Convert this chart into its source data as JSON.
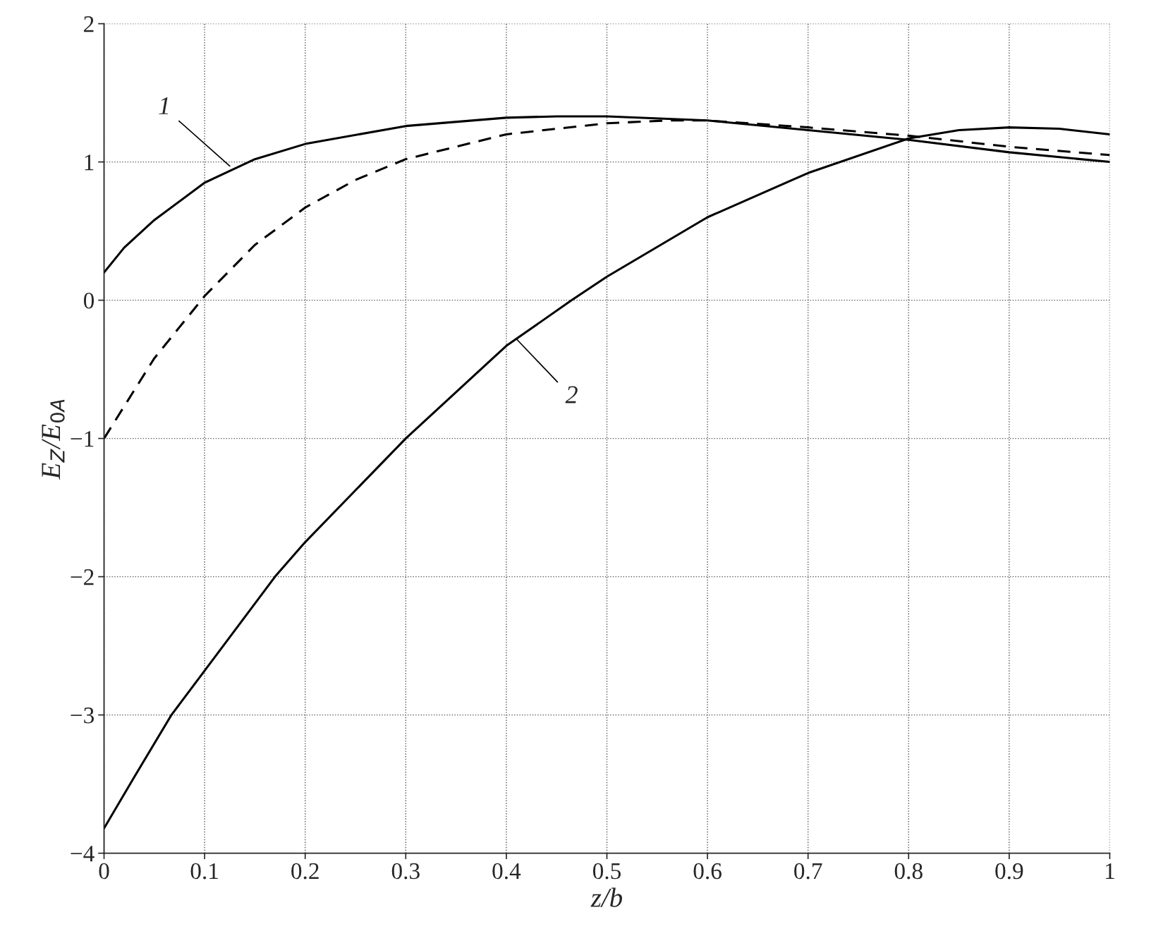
{
  "chart_data": {
    "type": "line",
    "xlabel": "z/b",
    "ylabel": "E$_{Z}$/E$_{0A}$",
    "xlim": [
      0,
      1
    ],
    "ylim": [
      -4,
      2
    ],
    "xticks": [
      0,
      0.1,
      0.2,
      0.3,
      0.4,
      0.5,
      0.6,
      0.7,
      0.8,
      0.9,
      1
    ],
    "yticks": [
      {
        "value": -4,
        "label": "−4"
      },
      {
        "value": -3,
        "label": "−3"
      },
      {
        "value": -2,
        "label": "−2"
      },
      {
        "value": -1,
        "label": "−1"
      },
      0,
      1,
      2
    ],
    "grid": true,
    "series": [
      {
        "color": "#000000",
        "line_style": "solid",
        "x": [
          0,
          0.02,
          0.05,
          0.1,
          0.15,
          0.2,
          0.3,
          0.4,
          0.45,
          0.5,
          0.6,
          0.7,
          0.8,
          0.9,
          1.0
        ],
        "values": [
          0.2,
          0.38,
          0.58,
          0.85,
          1.02,
          1.13,
          1.26,
          1.32,
          1.33,
          1.33,
          1.3,
          1.23,
          1.16,
          1.07,
          1.0
        ]
      },
      {
        "color": "#000000",
        "line_style": "dashed",
        "x": [
          0,
          0.05,
          0.1,
          0.15,
          0.2,
          0.25,
          0.3,
          0.4,
          0.5,
          0.56,
          0.6,
          0.7,
          0.8,
          0.9,
          1.0
        ],
        "values": [
          -1.0,
          -0.42,
          0.03,
          0.4,
          0.67,
          0.87,
          1.02,
          1.2,
          1.28,
          1.3,
          1.3,
          1.25,
          1.19,
          1.11,
          1.05
        ]
      },
      {
        "color": "#000000",
        "line_style": "solid",
        "x": [
          0,
          0.03,
          0.067,
          0.1,
          0.17,
          0.2,
          0.3,
          0.4,
          0.465,
          0.5,
          0.6,
          0.7,
          0.8,
          0.85,
          0.9,
          0.95,
          1.0
        ],
        "values": [
          -3.82,
          -3.45,
          -3.0,
          -2.68,
          -2.0,
          -1.75,
          -1.0,
          -0.33,
          0.0,
          0.17,
          0.6,
          0.92,
          1.17,
          1.23,
          1.25,
          1.24,
          1.2
        ]
      }
    ],
    "annotations": [
      {
        "text": "1",
        "x": 0.125,
        "y": 0.97
      },
      {
        "text": "2",
        "x": 0.41,
        "y": -0.28
      }
    ]
  }
}
